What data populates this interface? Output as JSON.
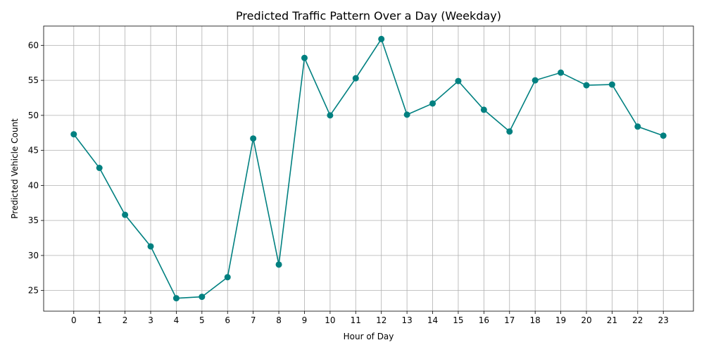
{
  "chart_data": {
    "type": "line",
    "title": "Predicted Traffic Pattern Over a Day (Weekday)",
    "xlabel": "Hour of Day",
    "ylabel": "Predicted Vehicle Count",
    "x": [
      0,
      1,
      2,
      3,
      4,
      5,
      6,
      7,
      8,
      9,
      10,
      11,
      12,
      13,
      14,
      15,
      16,
      17,
      18,
      19,
      20,
      21,
      22,
      23
    ],
    "x_tick_labels": [
      "0",
      "1",
      "2",
      "3",
      "4",
      "5",
      "6",
      "7",
      "8",
      "9",
      "10",
      "11",
      "12",
      "13",
      "14",
      "15",
      "16",
      "17",
      "18",
      "19",
      "20",
      "21",
      "22",
      "23"
    ],
    "y_ticks": [
      25,
      30,
      35,
      40,
      45,
      50,
      55,
      60
    ],
    "y_tick_labels": [
      "25",
      "30",
      "35",
      "40",
      "45",
      "50",
      "55",
      "60"
    ],
    "series": [
      {
        "values": [
          47.3,
          42.5,
          35.8,
          31.3,
          23.9,
          24.1,
          26.9,
          46.7,
          28.7,
          58.2,
          50.0,
          55.3,
          60.9,
          50.1,
          51.7,
          54.9,
          50.8,
          47.7,
          55.0,
          56.1,
          54.3,
          54.4,
          48.4,
          47.1
        ],
        "color": "#008080"
      }
    ],
    "xlim": [
      -1.175,
      24.175
    ],
    "ylim": [
      22.05,
      62.75
    ],
    "grid": true,
    "marker": "circle"
  }
}
